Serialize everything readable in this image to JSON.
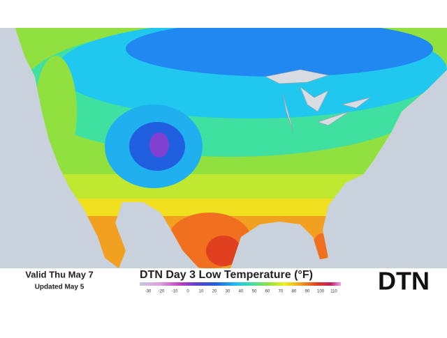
{
  "header": {
    "valid": "Valid Thu May 7",
    "updated": "Updated May 5"
  },
  "title": "DTN Day 3 Low Temperature (°F)",
  "legend": {
    "ticks": [
      -30,
      -20,
      -10,
      0,
      10,
      20,
      30,
      40,
      50,
      60,
      70,
      80,
      90,
      100,
      110
    ]
  },
  "logo": "DTN"
}
